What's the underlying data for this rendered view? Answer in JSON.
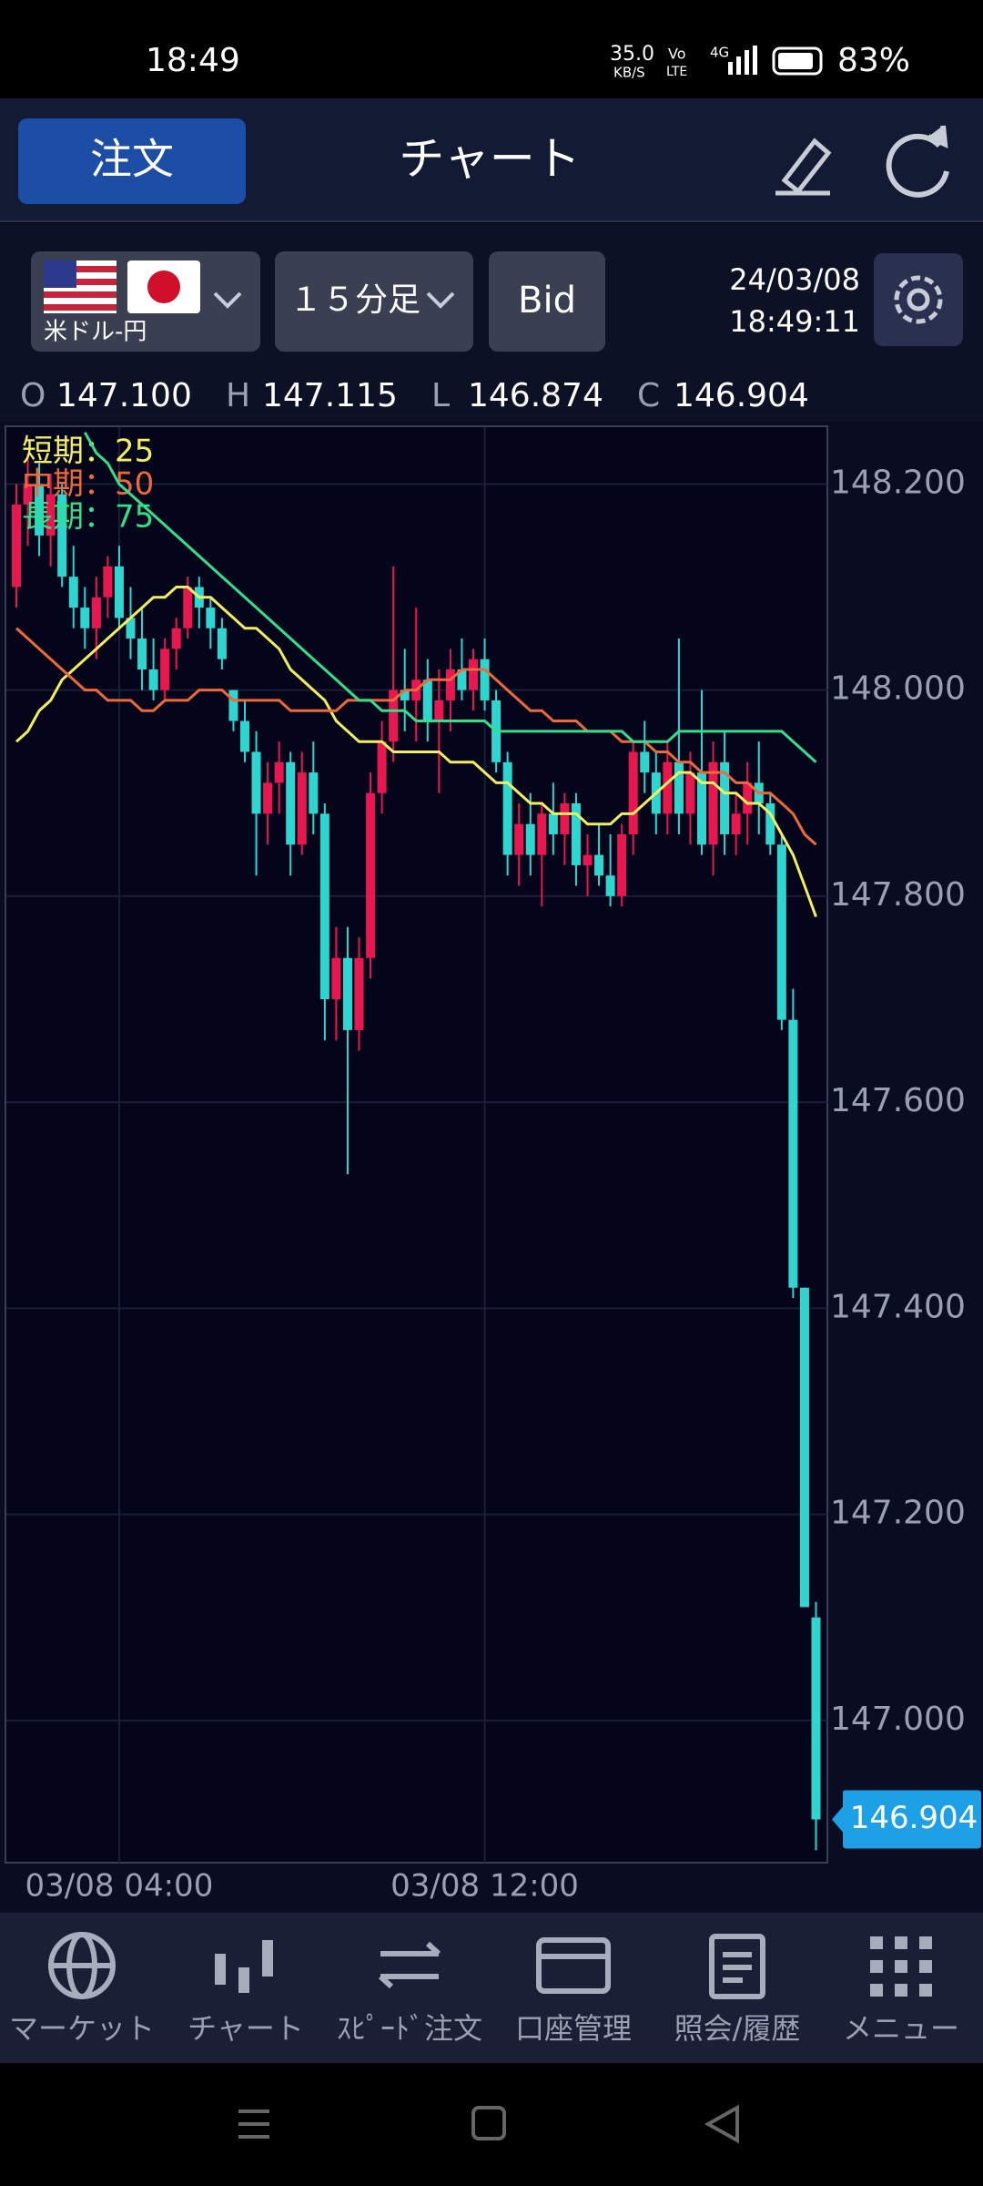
{
  "status_bar": {
    "time": "18:49",
    "network_speed": "35.0",
    "network_unit": "KB/S",
    "vo": "Vo",
    "lte": "LTE",
    "net": "4G",
    "battery": "83%"
  },
  "header": {
    "order_button": "注文",
    "title": "チャート"
  },
  "toolbar": {
    "pair": "米ドル-円",
    "timeframe": "１５分足",
    "price_type": "Bid",
    "date": "24/03/08",
    "time": "18:49:11"
  },
  "ohlc": [
    {
      "key": "O",
      "value": "147.100"
    },
    {
      "key": "H",
      "value": "147.115"
    },
    {
      "key": "L",
      "value": "146.874"
    },
    {
      "key": "C",
      "value": "146.904"
    }
  ],
  "chart_data": {
    "type": "candlestick",
    "up_color": "#e8174f",
    "down_color": "#2fd6d0",
    "open": [
      148.1,
      148.18,
      148.2,
      148.15,
      148.19,
      148.11,
      148.08,
      148.06,
      148.09,
      148.12,
      148.07,
      148.05,
      148.02,
      148.0,
      148.04,
      148.06,
      148.1,
      148.08,
      148.06,
      148.0,
      147.97,
      147.94,
      147.88,
      147.91,
      147.93,
      147.85,
      147.92,
      147.88,
      147.7,
      147.74,
      147.67,
      147.74,
      147.9,
      147.95,
      148.0,
      147.99,
      148.01,
      147.97,
      147.99,
      148.02,
      148.0,
      148.03,
      147.99,
      147.93,
      147.84,
      147.87,
      147.84,
      147.88,
      147.86,
      147.89,
      147.83,
      147.84,
      147.82,
      147.8,
      147.86,
      147.94,
      147.92,
      147.88,
      147.93,
      147.88,
      147.92,
      147.85,
      147.93,
      147.86,
      147.88,
      147.91,
      147.89,
      147.85,
      147.68,
      147.42,
      147.1
    ],
    "high": [
      148.2,
      148.23,
      148.22,
      148.21,
      148.2,
      148.14,
      148.1,
      148.11,
      148.13,
      148.14,
      148.1,
      148.08,
      148.05,
      148.05,
      148.07,
      148.11,
      148.11,
      148.09,
      148.07,
      148.0,
      147.99,
      147.96,
      147.93,
      147.95,
      147.94,
      147.94,
      147.95,
      147.89,
      147.77,
      147.77,
      147.76,
      147.92,
      147.97,
      148.12,
      148.04,
      148.08,
      148.03,
      148.02,
      148.04,
      148.05,
      148.04,
      148.05,
      148.0,
      147.94,
      147.89,
      147.9,
      147.89,
      147.91,
      147.9,
      147.9,
      147.86,
      147.87,
      147.86,
      147.87,
      147.95,
      147.97,
      147.94,
      147.95,
      148.05,
      147.94,
      148.0,
      147.95,
      147.96,
      147.9,
      147.93,
      147.95,
      147.9,
      147.86,
      147.71,
      147.42,
      147.115
    ],
    "low": [
      148.08,
      148.14,
      148.13,
      148.12,
      148.1,
      148.06,
      148.04,
      148.03,
      148.07,
      148.06,
      148.03,
      148.0,
      147.99,
      147.99,
      148.02,
      148.05,
      148.06,
      148.04,
      148.02,
      147.96,
      147.93,
      147.82,
      147.85,
      147.88,
      147.82,
      147.84,
      147.86,
      147.66,
      147.66,
      147.53,
      147.65,
      147.72,
      147.88,
      147.93,
      147.96,
      147.95,
      147.95,
      147.9,
      147.96,
      147.99,
      147.98,
      147.98,
      147.92,
      147.82,
      147.81,
      147.82,
      147.79,
      147.84,
      147.83,
      147.81,
      147.8,
      147.81,
      147.79,
      147.79,
      147.84,
      147.9,
      147.86,
      147.86,
      147.86,
      147.85,
      147.84,
      147.82,
      147.84,
      147.84,
      147.85,
      147.86,
      147.84,
      147.67,
      147.41,
      147.11,
      146.874
    ],
    "close": [
      148.18,
      148.2,
      148.15,
      148.19,
      148.11,
      148.08,
      148.06,
      148.09,
      148.12,
      148.07,
      148.05,
      148.02,
      148.0,
      148.04,
      148.06,
      148.1,
      148.08,
      148.06,
      148.03,
      147.97,
      147.94,
      147.88,
      147.91,
      147.93,
      147.85,
      147.92,
      147.88,
      147.7,
      147.74,
      147.67,
      147.74,
      147.9,
      147.95,
      148.0,
      147.99,
      148.01,
      147.97,
      147.99,
      148.02,
      148.0,
      148.03,
      147.99,
      147.93,
      147.84,
      147.87,
      147.84,
      147.88,
      147.86,
      147.89,
      147.83,
      147.84,
      147.82,
      147.8,
      147.86,
      147.94,
      147.92,
      147.88,
      147.93,
      147.88,
      147.92,
      147.85,
      147.93,
      147.86,
      147.88,
      147.91,
      147.89,
      147.85,
      147.68,
      147.42,
      147.11,
      146.904
    ],
    "series": [
      {
        "name": "短期：25",
        "color": "#f2ee5c",
        "values": [
          147.95,
          147.96,
          147.98,
          147.99,
          148.01,
          148.02,
          148.03,
          148.04,
          148.05,
          148.06,
          148.07,
          148.08,
          148.09,
          148.09,
          148.1,
          148.1,
          148.09,
          148.09,
          148.08,
          148.07,
          148.06,
          148.06,
          148.05,
          148.04,
          148.02,
          148.01,
          148.0,
          147.99,
          147.97,
          147.96,
          147.95,
          147.95,
          147.95,
          147.94,
          147.94,
          147.94,
          147.94,
          147.94,
          147.93,
          147.93,
          147.93,
          147.92,
          147.91,
          147.91,
          147.9,
          147.89,
          147.89,
          147.88,
          147.88,
          147.88,
          147.87,
          147.87,
          147.87,
          147.88,
          147.88,
          147.89,
          147.9,
          147.91,
          147.92,
          147.92,
          147.91,
          147.91,
          147.9,
          147.9,
          147.89,
          147.89,
          147.88,
          147.86,
          147.84,
          147.81,
          147.78
        ]
      },
      {
        "name": "中期：50",
        "color": "#f0683a",
        "values": [
          148.06,
          148.05,
          148.04,
          148.03,
          148.02,
          148.01,
          148.0,
          148.0,
          147.99,
          147.99,
          147.99,
          147.98,
          147.98,
          147.99,
          147.99,
          147.99,
          148.0,
          148.0,
          148.0,
          147.99,
          147.99,
          147.99,
          147.99,
          147.99,
          147.98,
          147.98,
          147.98,
          147.98,
          147.98,
          147.99,
          147.99,
          147.99,
          147.99,
          147.99,
          148.0,
          148.0,
          148.01,
          148.01,
          148.01,
          148.02,
          148.02,
          148.02,
          148.01,
          148.0,
          147.99,
          147.98,
          147.98,
          147.97,
          147.97,
          147.97,
          147.96,
          147.96,
          147.96,
          147.95,
          147.95,
          147.95,
          147.94,
          147.94,
          147.93,
          147.93,
          147.92,
          147.92,
          147.92,
          147.91,
          147.91,
          147.9,
          147.9,
          147.89,
          147.88,
          147.86,
          147.85
        ]
      },
      {
        "name": "長期：75",
        "color": "#2fe08c",
        "values": [
          null,
          null,
          null,
          null,
          null,
          null,
          148.25,
          148.23,
          148.22,
          148.2,
          148.19,
          148.18,
          148.17,
          148.16,
          148.15,
          148.14,
          148.13,
          148.12,
          148.11,
          148.1,
          148.09,
          148.08,
          148.07,
          148.06,
          148.05,
          148.04,
          148.03,
          148.02,
          148.01,
          148.0,
          147.99,
          147.99,
          147.98,
          147.98,
          147.98,
          147.97,
          147.97,
          147.97,
          147.97,
          147.97,
          147.97,
          147.97,
          147.96,
          147.96,
          147.96,
          147.96,
          147.96,
          147.96,
          147.96,
          147.96,
          147.96,
          147.96,
          147.96,
          147.96,
          147.95,
          147.95,
          147.95,
          147.95,
          147.96,
          147.96,
          147.96,
          147.96,
          147.96,
          147.96,
          147.96,
          147.96,
          147.96,
          147.96,
          147.95,
          147.94,
          147.93
        ]
      }
    ],
    "ylim": [
      146.862,
      148.256
    ],
    "yticks": [
      {
        "value": 148.2,
        "label": "148.200"
      },
      {
        "value": 148.0,
        "label": "148.000"
      },
      {
        "value": 147.8,
        "label": "147.800"
      },
      {
        "value": 147.6,
        "label": "147.600"
      },
      {
        "value": 147.4,
        "label": "147.400"
      },
      {
        "value": 147.2,
        "label": "147.200"
      },
      {
        "value": 147.0,
        "label": "147.000"
      }
    ],
    "xticks": [
      {
        "value": 9,
        "label": "03/08 04:00"
      },
      {
        "value": 41,
        "label": "03/08 12:00"
      }
    ],
    "grid": true,
    "last_value_label": {
      "value": 146.904,
      "label": "146.904"
    }
  },
  "nav": [
    "マーケット",
    "チャート",
    "ｽﾋﾟｰﾄﾞ注文",
    "口座管理",
    "照会/履歴",
    "メニュー"
  ]
}
